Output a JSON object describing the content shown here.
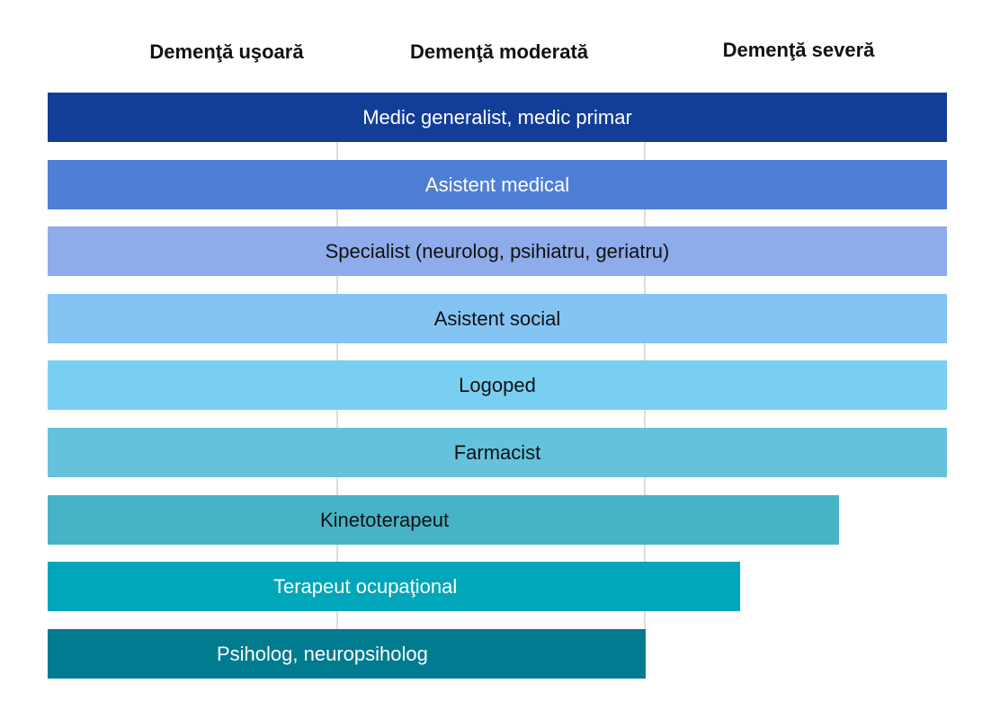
{
  "headers": [
    "Demenţă uşoară",
    "Demenţă moderată",
    "Demenţă severă"
  ],
  "bars": [
    {
      "label": "Medic generalist, medic primar",
      "extent": 1.0,
      "color": "#123e98",
      "text_color": "#ffffff"
    },
    {
      "label": "Asistent medical",
      "extent": 1.0,
      "color": "#4f7fd5",
      "text_color": "#ffffff"
    },
    {
      "label": "Specialist (neurolog, psihiatru, geriatru)",
      "extent": 1.0,
      "color": "#8eabea",
      "text_color": "#111111"
    },
    {
      "label": "Asistent social",
      "extent": 1.0,
      "color": "#84c4f3",
      "text_color": "#111111"
    },
    {
      "label": "Logoped",
      "extent": 1.0,
      "color": "#79cff1",
      "text_color": "#111111"
    },
    {
      "label": "Farmacist",
      "extent": 1.0,
      "color": "#65c2dd",
      "text_color": "#111111"
    },
    {
      "label": "Kinetoterapeut",
      "extent": 0.88,
      "color": "#46b3c6",
      "text_color": "#111111"
    },
    {
      "label": "Terapeut ocupaţional",
      "extent": 0.77,
      "color": "#00a6b9",
      "text_color": "#ffffff"
    },
    {
      "label": "Psiholog, neuropsiholog",
      "extent": 0.665,
      "color": "#007b8f",
      "text_color": "#ffffff"
    }
  ]
}
